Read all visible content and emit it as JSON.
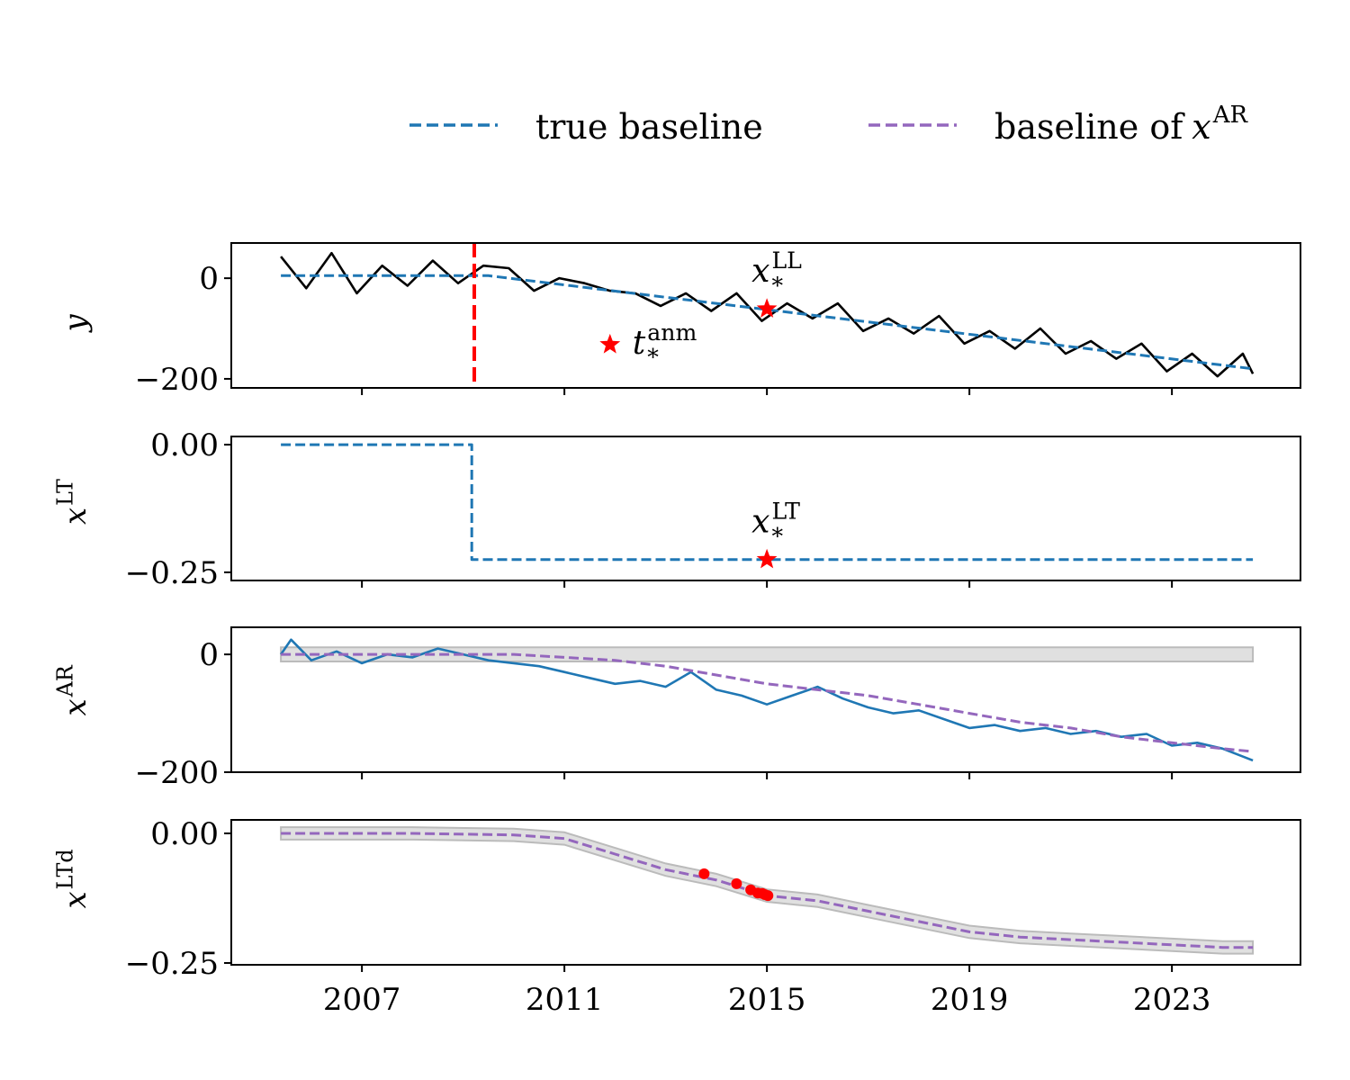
{
  "chart_data": [
    {
      "type": "line",
      "xlim": [
        2004.42,
        2025.54
      ],
      "ylim": [
        -218,
        70
      ],
      "xticks": [
        2007,
        2011,
        2015,
        2019,
        2023
      ],
      "show_xticklabels": false,
      "yticks": [
        {
          "value": 0,
          "label": "0"
        },
        {
          "value": -200,
          "label": "−200"
        }
      ],
      "ylabel": {
        "base": "y"
      },
      "legend": [
        {
          "name": "true baseline",
          "color": "#1f77b4"
        },
        {
          "name": "baseline of ",
          "math": {
            "base": "x",
            "sup": "AR"
          },
          "color": "#9467bd"
        }
      ],
      "series": [
        {
          "kind": "line",
          "color": "#000000",
          "dash": false,
          "x": [
            2005.4,
            2005.9,
            2006.4,
            2006.9,
            2007.4,
            2007.9,
            2008.4,
            2008.9,
            2009.4,
            2009.9,
            2010.4,
            2010.9,
            2011.4,
            2011.9,
            2012.4,
            2012.9,
            2013.4,
            2013.9,
            2014.4,
            2014.9,
            2015.4,
            2015.9,
            2016.4,
            2016.9,
            2017.4,
            2017.9,
            2018.4,
            2018.9,
            2019.4,
            2019.9,
            2020.4,
            2020.9,
            2021.4,
            2021.9,
            2022.4,
            2022.9,
            2023.4,
            2023.9,
            2024.4,
            2024.6
          ],
          "values": [
            43,
            -20,
            50,
            -30,
            25,
            -15,
            35,
            -10,
            25,
            20,
            -25,
            0,
            -10,
            -25,
            -30,
            -55,
            -30,
            -65,
            -30,
            -85,
            -50,
            -80,
            -50,
            -105,
            -80,
            -110,
            -75,
            -130,
            -105,
            -140,
            -100,
            -150,
            -125,
            -160,
            -130,
            -185,
            -150,
            -195,
            -150,
            -190
          ]
        },
        {
          "kind": "line",
          "color": "#1f77b4",
          "dash": true,
          "x": [
            2005.4,
            2009.5,
            2024.6
          ],
          "values": [
            5,
            5,
            -180
          ]
        }
      ],
      "vlines": [
        {
          "x": 2009.22,
          "color": "#ff0000"
        }
      ],
      "annotations": [
        {
          "x": 2011.9,
          "y": -132,
          "color": "#ff0000",
          "label": {
            "base": "t",
            "sub": "*",
            "sup": "anm"
          },
          "label_position": "right"
        },
        {
          "x": 2015,
          "y": -61,
          "color": "#ff0000",
          "label": {
            "base": "x",
            "sub": "*",
            "sup": "LL"
          },
          "label_position": "above"
        }
      ]
    },
    {
      "type": "line",
      "xlim": [
        2004.42,
        2025.54
      ],
      "ylim": [
        -0.266,
        0.016
      ],
      "xticks": [
        2007,
        2011,
        2015,
        2019,
        2023
      ],
      "show_xticklabels": false,
      "yticks": [
        {
          "value": 0,
          "label": "0.00"
        },
        {
          "value": -0.25,
          "label": "−0.25"
        }
      ],
      "ylabel": {
        "base": "x",
        "sup": "LT"
      },
      "series": [
        {
          "kind": "line",
          "color": "#1f77b4",
          "dash": true,
          "x": [
            2005.4,
            2009.17,
            2009.17,
            2024.6
          ],
          "values": [
            0,
            0,
            -0.225,
            -0.225
          ]
        }
      ],
      "annotations": [
        {
          "x": 2015,
          "y": -0.225,
          "color": "#ff0000",
          "label": {
            "base": "x",
            "sub": "*",
            "sup": "LT"
          },
          "label_position": "above"
        }
      ]
    },
    {
      "type": "line",
      "xlim": [
        2004.42,
        2025.54
      ],
      "ylim": [
        -200,
        46
      ],
      "xticks": [
        2007,
        2011,
        2015,
        2019,
        2023
      ],
      "show_xticklabels": false,
      "yticks": [
        {
          "value": 0,
          "label": "0"
        },
        {
          "value": -200,
          "label": "−200"
        }
      ],
      "ylabel": {
        "base": "x",
        "sup": "AR"
      },
      "series": [
        {
          "kind": "band",
          "color": "#bbbbbb",
          "x": [
            2005.4,
            2024.6
          ],
          "upper": [
            12,
            12
          ],
          "lower": [
            -12,
            -12
          ]
        },
        {
          "kind": "line",
          "color": "#1f77b4",
          "dash": false,
          "x": [
            2005.4,
            2005.6,
            2006,
            2006.5,
            2007,
            2007.5,
            2008,
            2008.5,
            2009,
            2009.5,
            2010,
            2010.5,
            2011,
            2011.5,
            2012,
            2012.5,
            2013,
            2013.5,
            2014,
            2014.5,
            2015,
            2015.5,
            2016,
            2016.5,
            2017,
            2017.5,
            2018,
            2018.5,
            2019,
            2019.5,
            2020,
            2020.5,
            2021,
            2021.5,
            2022,
            2022.5,
            2023,
            2023.5,
            2024,
            2024.6
          ],
          "values": [
            0,
            25,
            -10,
            5,
            -15,
            0,
            -5,
            10,
            0,
            -10,
            -15,
            -20,
            -30,
            -40,
            -50,
            -45,
            -55,
            -30,
            -60,
            -70,
            -85,
            -70,
            -55,
            -75,
            -90,
            -100,
            -95,
            -110,
            -125,
            -120,
            -130,
            -125,
            -135,
            -130,
            -140,
            -135,
            -155,
            -150,
            -160,
            -180
          ]
        },
        {
          "kind": "line",
          "color": "#9467bd",
          "dash": true,
          "x": [
            2005.4,
            2010,
            2011,
            2012,
            2013,
            2014,
            2015,
            2016,
            2017,
            2018,
            2019,
            2020,
            2021,
            2022,
            2023,
            2024,
            2024.6
          ],
          "values": [
            0,
            0,
            -5,
            -10,
            -20,
            -35,
            -50,
            -60,
            -70,
            -85,
            -100,
            -115,
            -125,
            -140,
            -150,
            -160,
            -165
          ]
        }
      ]
    },
    {
      "type": "line",
      "xlim": [
        2004.42,
        2025.54
      ],
      "ylim": [
        -0.2535,
        0.026
      ],
      "xticks": [
        2007,
        2011,
        2015,
        2019,
        2023
      ],
      "show_xticklabels": true,
      "yticks": [
        {
          "value": 0,
          "label": "0.00"
        },
        {
          "value": -0.25,
          "label": "−0.25"
        }
      ],
      "ylabel": {
        "base": "x",
        "sup": "LTd"
      },
      "series": [
        {
          "kind": "band",
          "color": "#bbbbbb",
          "x": [
            2005.4,
            2008,
            2010,
            2011,
            2012,
            2013,
            2014,
            2015,
            2016,
            2017,
            2018,
            2019,
            2020,
            2021,
            2022,
            2023,
            2024,
            2024.6
          ],
          "upper": [
            0.012,
            0.012,
            0.009,
            0.002,
            -0.028,
            -0.058,
            -0.078,
            -0.108,
            -0.118,
            -0.138,
            -0.158,
            -0.178,
            -0.188,
            -0.193,
            -0.198,
            -0.203,
            -0.208,
            -0.208
          ],
          "lower": [
            -0.012,
            -0.012,
            -0.015,
            -0.022,
            -0.052,
            -0.082,
            -0.102,
            -0.132,
            -0.142,
            -0.162,
            -0.182,
            -0.202,
            -0.212,
            -0.217,
            -0.222,
            -0.227,
            -0.232,
            -0.232
          ]
        },
        {
          "kind": "line",
          "color": "#9467bd",
          "dash": true,
          "x": [
            2005.4,
            2008,
            2010,
            2011,
            2012,
            2013,
            2014,
            2015,
            2016,
            2017,
            2018,
            2019,
            2020,
            2021,
            2022,
            2023,
            2024,
            2024.6
          ],
          "values": [
            0,
            0,
            -0.003,
            -0.01,
            -0.04,
            -0.07,
            -0.09,
            -0.12,
            -0.13,
            -0.15,
            -0.17,
            -0.19,
            -0.2,
            -0.205,
            -0.21,
            -0.215,
            -0.22,
            -0.22
          ]
        },
        {
          "kind": "scatter",
          "color": "#ff0000",
          "x": [
            2013.76,
            2014.4,
            2014.68,
            2014.82,
            2014.91,
            2014.96,
            2015.02
          ],
          "values": [
            -0.078,
            -0.097,
            -0.109,
            -0.115,
            -0.116,
            -0.118,
            -0.12
          ]
        }
      ]
    }
  ]
}
